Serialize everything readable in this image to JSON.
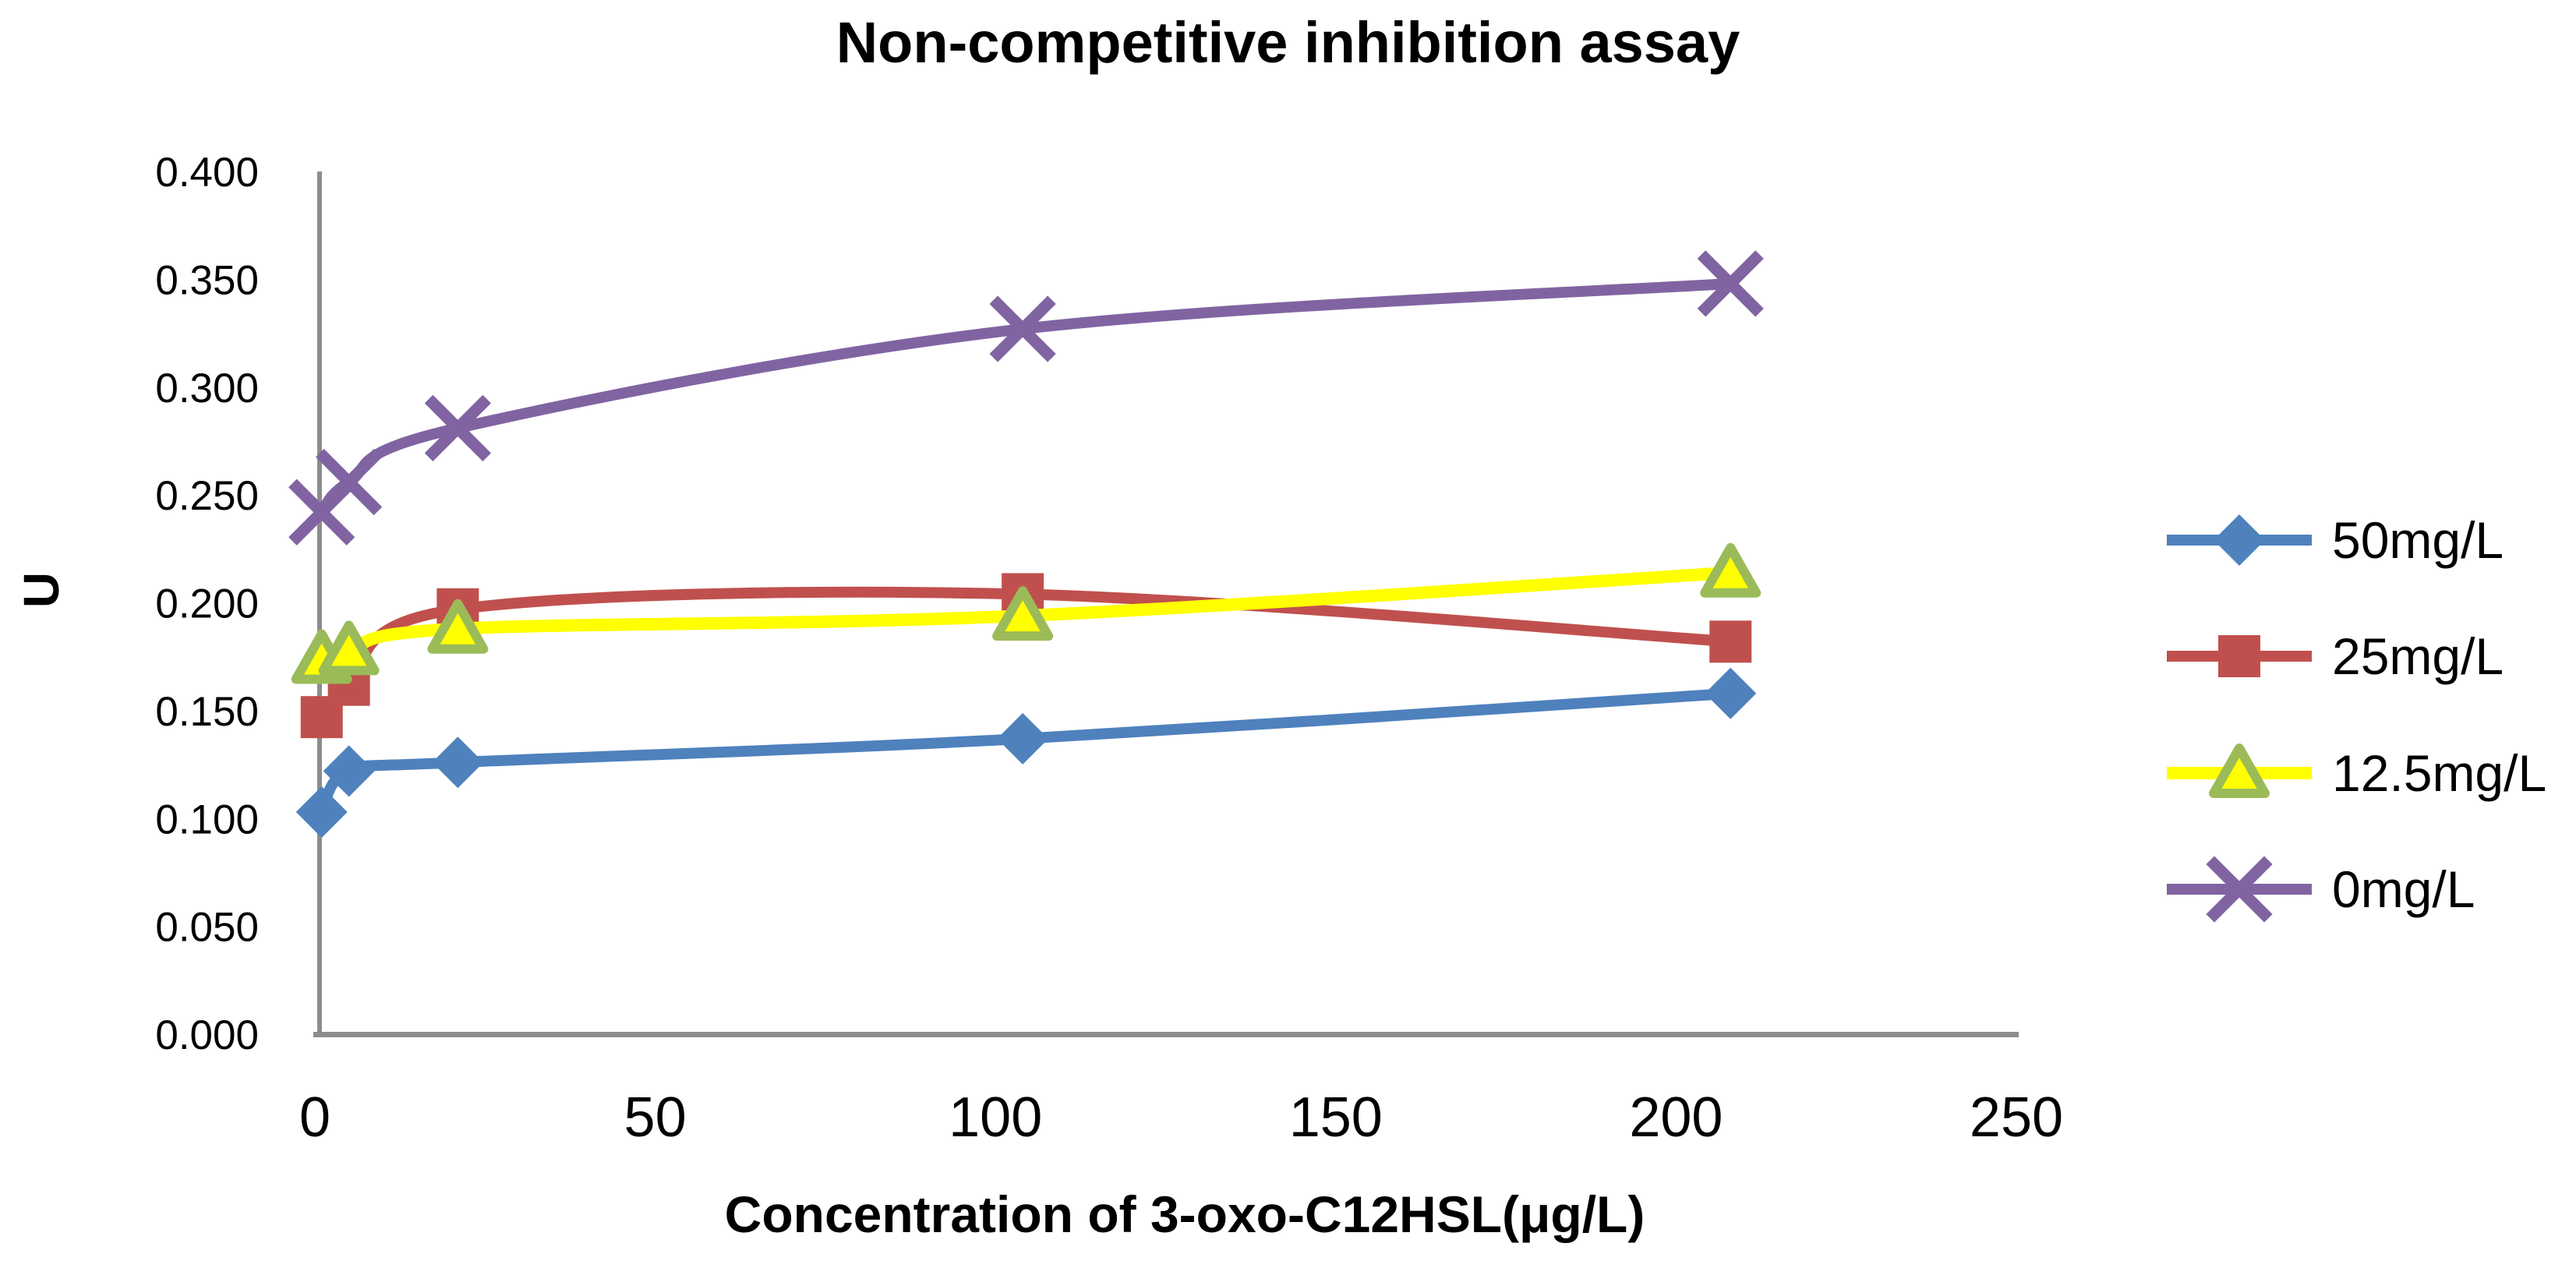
{
  "chart_data": {
    "type": "line",
    "title": "Non-competitive inhibition assay",
    "xlabel": "Concentration of 3-oxo-C12HSL(μg/L)",
    "ylabel": "U",
    "xlim": [
      0,
      250
    ],
    "ylim": [
      0.0,
      0.4
    ],
    "grid": false,
    "legend_position": "right",
    "background": "#ffffff",
    "axis_color": "#8C8C8C",
    "text_color": "#000000",
    "x_ticks": {
      "labels": [
        "0",
        "50",
        "100",
        "150",
        "200",
        "250"
      ],
      "values": [
        0,
        50,
        100,
        150,
        200,
        250
      ]
    },
    "y_ticks": {
      "labels": [
        "0.400",
        "0.350",
        "0.300",
        "0.250",
        "0.200",
        "0.150",
        "0.100",
        "0.050",
        "0.000"
      ],
      "values": [
        0.4,
        0.35,
        0.3,
        0.25,
        0.2,
        0.15,
        0.1,
        0.05,
        0.0
      ]
    },
    "x": [
      1,
      5,
      21,
      104,
      208
    ],
    "series": [
      {
        "name": "50mg/L",
        "color": "#4F81BD",
        "marker": "diamond",
        "marker_fill": "#4F81BD",
        "marker_border": "#4F81BD",
        "values": [
          0.103,
          0.122,
          0.126,
          0.137,
          0.158
        ]
      },
      {
        "name": "25mg/L",
        "color": "#C0504D",
        "marker": "square",
        "marker_fill": "#C0504D",
        "marker_border": "#C0504D",
        "values": [
          0.147,
          0.162,
          0.197,
          0.204,
          0.182
        ]
      },
      {
        "name": "12.5mg/L",
        "color": "#FFFF00",
        "marker": "triangle",
        "marker_fill": "#FFFF00",
        "marker_border": "#9BBB59",
        "values": [
          0.174,
          0.178,
          0.188,
          0.194,
          0.214
        ]
      },
      {
        "name": "0mg/L",
        "color": "#8064A2",
        "marker": "x",
        "marker_fill": "#8064A2",
        "marker_border": "#8064A2",
        "values": [
          0.242,
          0.256,
          0.281,
          0.327,
          0.348
        ]
      }
    ]
  }
}
